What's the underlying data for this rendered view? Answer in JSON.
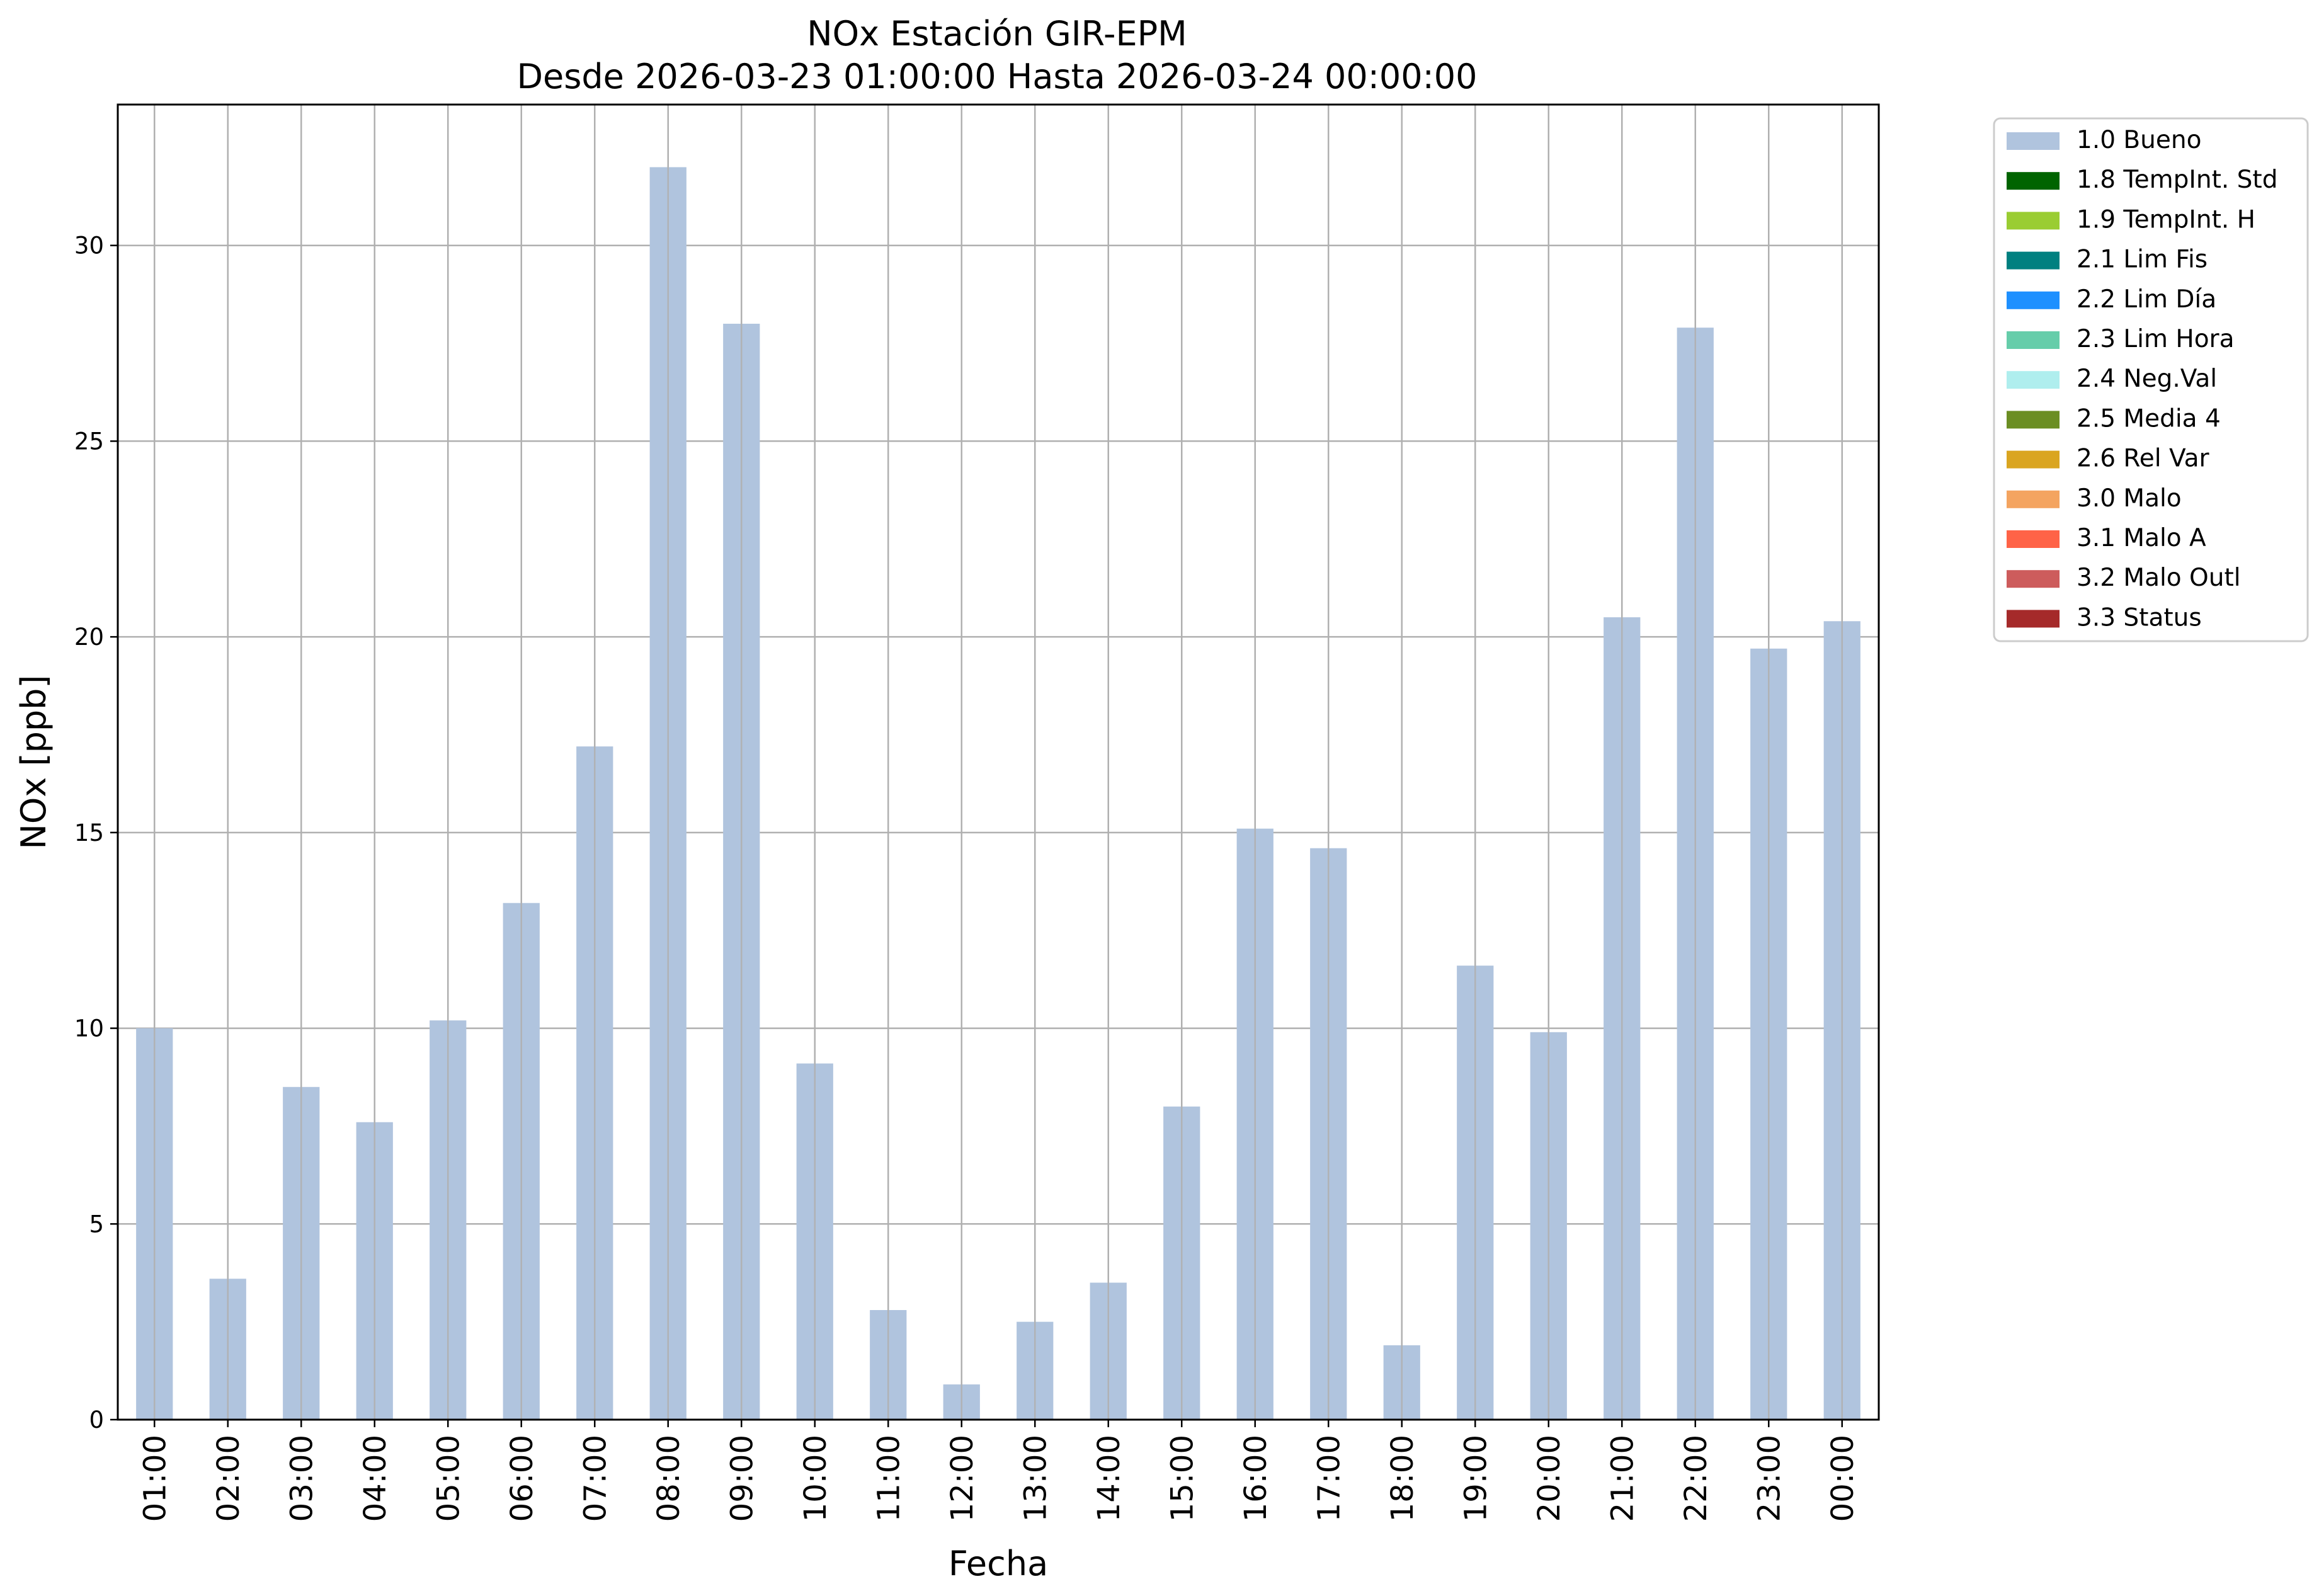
{
  "chart_data": {
    "type": "bar",
    "title": [
      "NOx Estación GIR-EPM",
      "Desde 2026-03-23 01:00:00 Hasta 2026-03-24 00:00:00"
    ],
    "xlabel": "Fecha",
    "ylabel": "NOx [ppb]",
    "ylim": [
      0,
      33.6
    ],
    "yticks": [
      0,
      5,
      10,
      15,
      20,
      25,
      30
    ],
    "grid": true,
    "legend_position": "outside-top-right",
    "categories": [
      "01:00",
      "02:00",
      "03:00",
      "04:00",
      "05:00",
      "06:00",
      "07:00",
      "08:00",
      "09:00",
      "10:00",
      "11:00",
      "12:00",
      "13:00",
      "14:00",
      "15:00",
      "16:00",
      "17:00",
      "18:00",
      "19:00",
      "20:00",
      "21:00",
      "22:00",
      "23:00",
      "00:00"
    ],
    "series": [
      {
        "name": "1.0 Bueno",
        "color": "#b0c4de",
        "values": [
          10.0,
          3.6,
          8.5,
          7.6,
          10.2,
          13.2,
          17.2,
          32.0,
          28.0,
          9.1,
          2.8,
          0.9,
          2.5,
          3.5,
          8.0,
          15.1,
          14.6,
          1.9,
          11.6,
          9.9,
          20.5,
          27.9,
          19.7,
          20.4
        ]
      }
    ],
    "legend": [
      {
        "label": "1.0 Bueno",
        "color": "#b0c4de"
      },
      {
        "label": "1.8 TempInt. Std",
        "color": "#006400"
      },
      {
        "label": "1.9 TempInt. H",
        "color": "#9acd32"
      },
      {
        "label": "2.1 Lim Fis",
        "color": "#008080"
      },
      {
        "label": "2.2 Lim Día",
        "color": "#1e90ff"
      },
      {
        "label": "2.3 Lim Hora",
        "color": "#66cdaa"
      },
      {
        "label": "2.4 Neg.Val",
        "color": "#afeeee"
      },
      {
        "label": "2.5 Media 4",
        "color": "#6b8e23"
      },
      {
        "label": "2.6 Rel Var",
        "color": "#daa520"
      },
      {
        "label": "3.0 Malo",
        "color": "#f4a460"
      },
      {
        "label": "3.1 Malo A",
        "color": "#ff6347"
      },
      {
        "label": "3.2 Malo Outl",
        "color": "#cd5c5c"
      },
      {
        "label": "3.3 Status",
        "color": "#a52a2a"
      }
    ]
  }
}
